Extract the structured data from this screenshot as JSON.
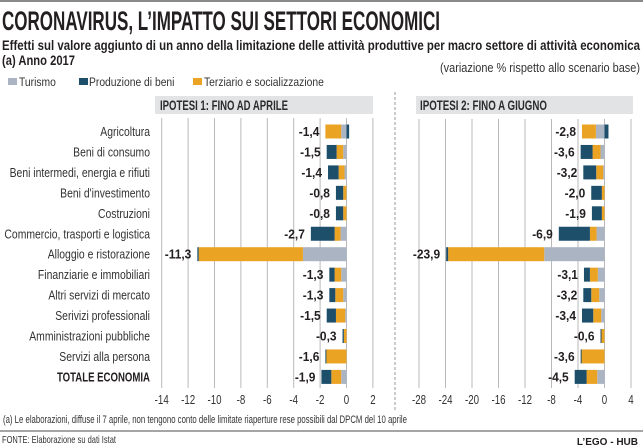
{
  "header": {
    "title": "CORONAVIRUS, L’IMPATTO SUI SETTORI ECONOMICI",
    "subtitle": "Effetti sul valore aggiunto di un anno della limitazione delle attività produttive per macro settore di attività economica",
    "subtitle_line2": "(a) Anno 2017",
    "unit_note": "(variazione % rispetto allo scenario base)"
  },
  "legend": [
    {
      "label": "Turismo",
      "color": "#aab4c3"
    },
    {
      "label": "Produzione di beni",
      "color": "#1d4f6b"
    },
    {
      "label": "Terziario e socializzazione",
      "color": "#eba324"
    }
  ],
  "footer": {
    "note": "(a) Le elaborazioni, diffuse il 7 aprile, non tengono conto delle limitate riaperture rese possibili dal DPCM del 10 aprile",
    "source": "FONTE: Elaborazione su dati Istat",
    "brand": "L’EGO - HUB"
  },
  "chart_data": [
    {
      "type": "bar",
      "orientation": "horizontal",
      "stacked": true,
      "title": "IPOTESI 1: FINO AD APRILE",
      "xlabel": "",
      "ylabel": "",
      "xlim": [
        -14,
        2
      ],
      "xticks": [
        -14,
        -12,
        -10,
        -8,
        -6,
        -4,
        -2,
        0,
        2
      ],
      "xtick_labels": [
        "-14",
        "-12",
        "-10",
        "-8",
        "-6",
        "-4",
        "-2",
        "0",
        "2"
      ],
      "grid": true,
      "legend_position": "top-left",
      "categories": [
        "Agricoltura",
        "Beni di consumo",
        "Beni intermedi, energia e rifiuti",
        "Beni d'investimento",
        "Costruzioni",
        "Commercio, trasporti e logistica",
        "Alloggio e ristorazione",
        "Finanziarie e immobiliari",
        "Altri servizi di mercato",
        "Serivizi professionali",
        "Amministrazioni pubbliche",
        "Servizi alla persona",
        "TOTALE ECONOMIA"
      ],
      "series": [
        {
          "name": "Turismo",
          "values": [
            -0.4,
            -0.25,
            -0.15,
            0,
            0,
            -0.45,
            -3.3,
            -0.4,
            -0.25,
            -0.1,
            0,
            0,
            -0.4
          ]
        },
        {
          "name": "Produzione di beni",
          "values": [
            0.2,
            -0.75,
            -0.8,
            -0.55,
            -0.55,
            -1.8,
            -0.1,
            -0.4,
            -0.45,
            -0.7,
            -0.1,
            -0.05,
            -0.75
          ]
        },
        {
          "name": "Terziario e socializzazione",
          "values": [
            -1.2,
            -0.5,
            -0.45,
            -0.25,
            -0.25,
            -0.45,
            -7.9,
            -0.5,
            -0.6,
            -0.7,
            -0.2,
            -1.55,
            -0.75
          ]
        }
      ],
      "totals": [
        -1.4,
        -1.5,
        -1.4,
        -0.8,
        -0.8,
        -2.7,
        -11.3,
        -1.3,
        -1.3,
        -1.5,
        -0.3,
        -1.6,
        -1.9
      ],
      "total_labels": [
        "-1,4",
        "-1,5",
        "-1,4",
        "-0,8",
        "-0,8",
        "-2,7",
        "-11,3",
        "-1,3",
        "-1,3",
        "-1,5",
        "-0,3",
        "-1,6",
        "-1,9"
      ]
    },
    {
      "type": "bar",
      "orientation": "horizontal",
      "stacked": true,
      "title": "IPOTESI 2: FINO A GIUGNO",
      "xlabel": "",
      "ylabel": "",
      "xlim": [
        -28,
        4
      ],
      "xticks": [
        -28,
        -24,
        -20,
        -16,
        -12,
        -8,
        -4,
        0,
        4
      ],
      "xtick_labels": [
        "-28",
        "-24",
        "-20",
        "-16",
        "-12",
        "-8",
        "-4",
        "0",
        "4"
      ],
      "grid": true,
      "categories": [
        "Agricoltura",
        "Beni di consumo",
        "Beni intermedi, energia e rifiuti",
        "Beni d'investimento",
        "Costruzioni",
        "Commercio, trasporti e logistica",
        "Alloggio e ristorazione",
        "Finanziarie e immobiliari",
        "Altri servizi di mercato",
        "Serivizi professionali",
        "Amministrazioni pubbliche",
        "Servizi alla persona",
        "TOTALE ECONOMIA"
      ],
      "series": [
        {
          "name": "Turismo",
          "values": [
            -1.3,
            -0.6,
            -0.2,
            0,
            0,
            -1.2,
            -9.1,
            -1.0,
            -0.8,
            -0.5,
            0,
            0,
            -1.1
          ]
        },
        {
          "name": "Produzione di beni",
          "values": [
            0.6,
            -1.8,
            -1.95,
            -1.6,
            -1.5,
            -4.7,
            -0.3,
            -0.9,
            -1.2,
            -1.7,
            -0.1,
            -0.1,
            -1.8
          ]
        },
        {
          "name": "Terziario e socializzazione",
          "values": [
            -2.1,
            -1.2,
            -1.05,
            -0.4,
            -0.4,
            -1.0,
            -14.5,
            -1.2,
            -1.2,
            -1.2,
            -0.5,
            -3.5,
            -1.6
          ]
        }
      ],
      "totals": [
        -2.8,
        -3.6,
        -3.2,
        -2.0,
        -1.9,
        -6.9,
        -23.9,
        -3.1,
        -3.2,
        -3.4,
        -0.6,
        -3.6,
        -4.5
      ],
      "total_labels": [
        "-2,8",
        "-3,6",
        "-3,2",
        "-2,0",
        "-1,9",
        "-6,9",
        "-23,9",
        "-3,1",
        "-3,2",
        "-3,4",
        "-0,6",
        "-3,6",
        "-4,5"
      ]
    }
  ]
}
